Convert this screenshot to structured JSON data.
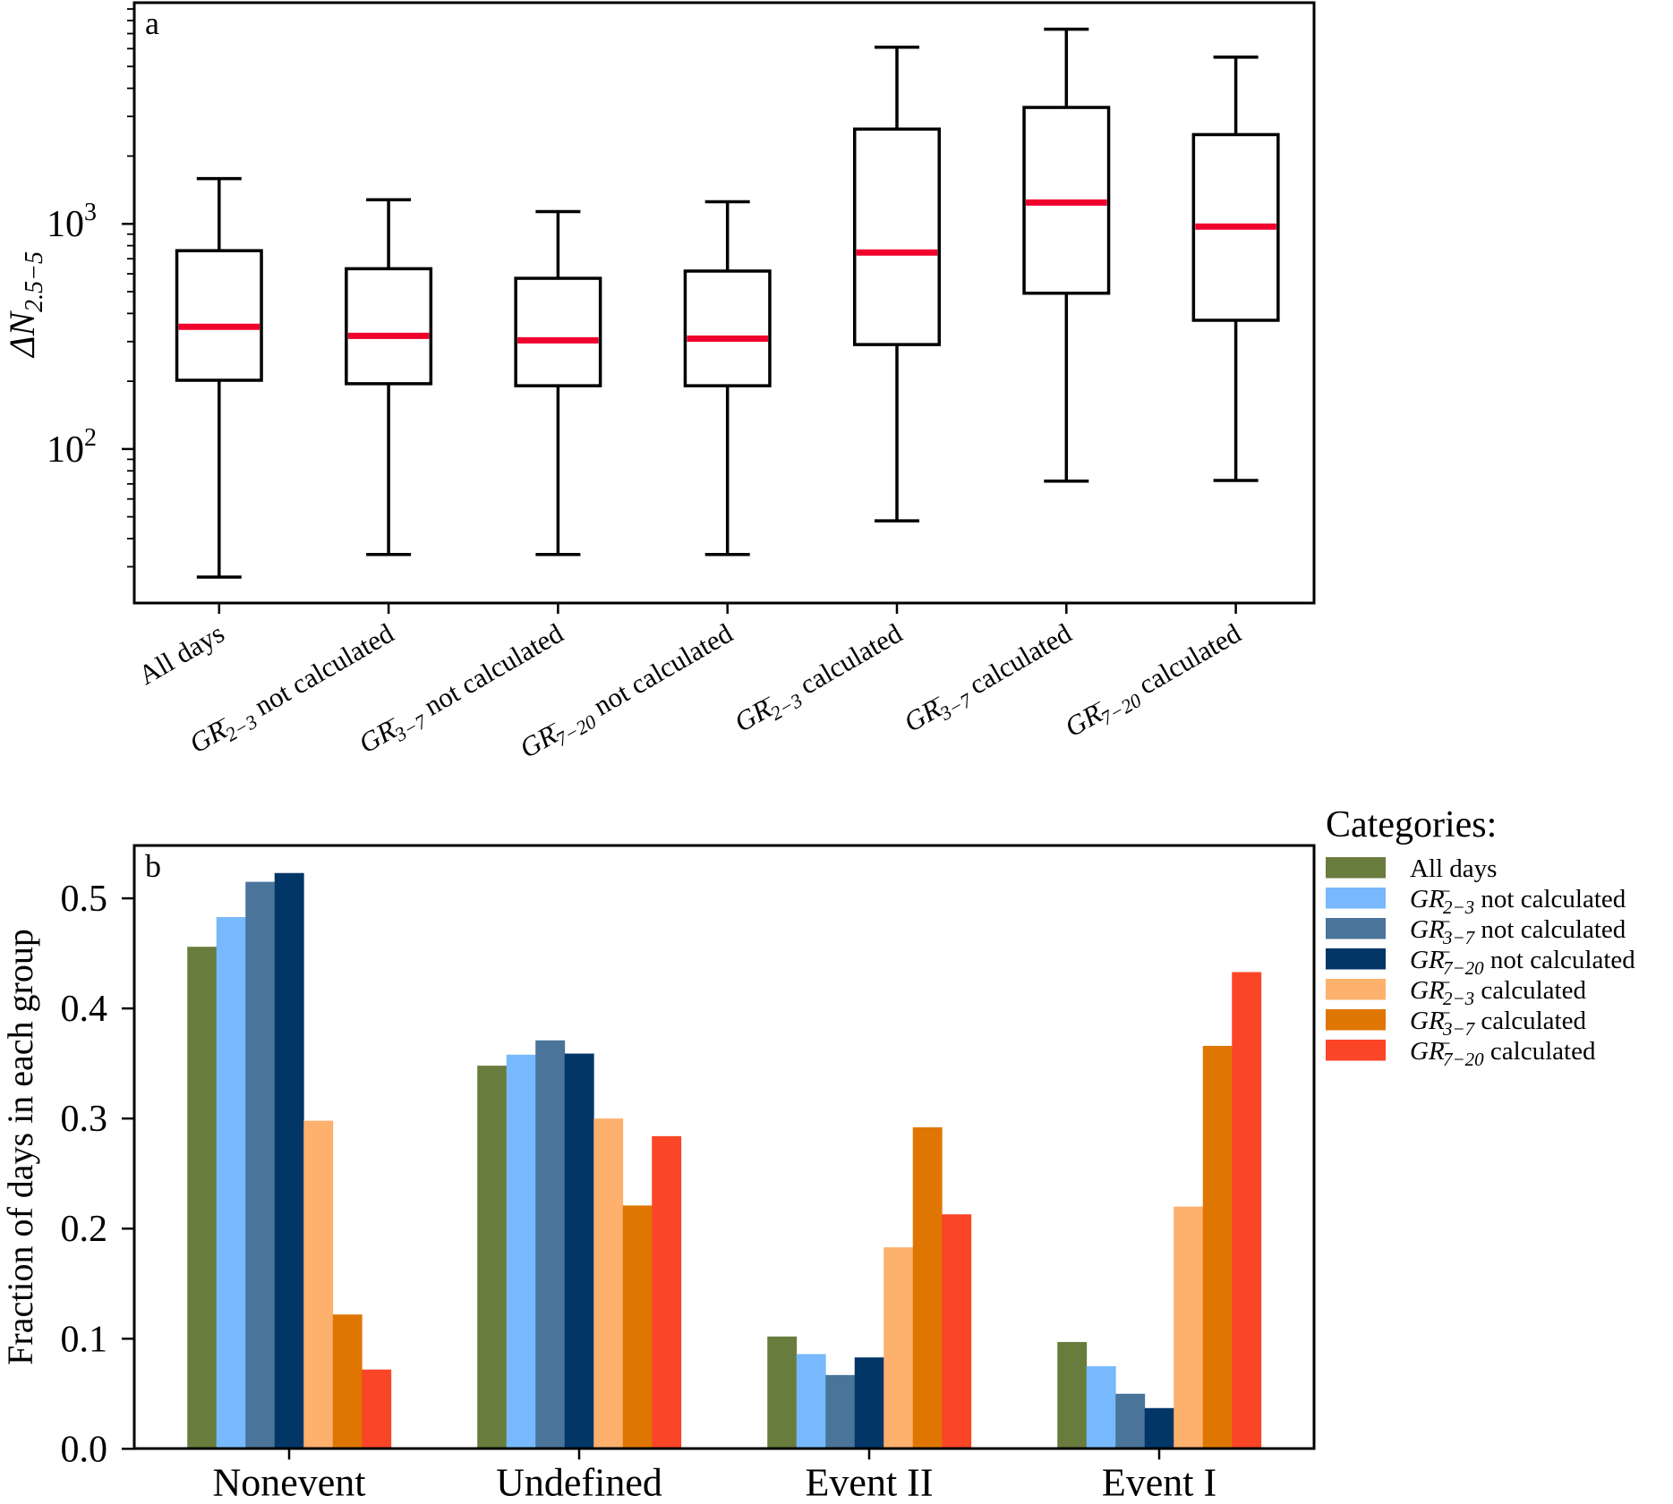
{
  "figure": {
    "panel_a_letter": "a",
    "panel_b_letter": "b"
  },
  "chart_data": [
    {
      "id": "panel-a",
      "type": "box",
      "title": "",
      "ylabel": {
        "main": "ΔN",
        "sub": "2.5−5"
      },
      "xlabel": "",
      "yscale": "log",
      "ylim": [
        20.7,
        9600
      ],
      "yticks": [
        {
          "value": 100,
          "base": "10",
          "exp": "2"
        },
        {
          "value": 1000,
          "base": "10",
          "exp": "3"
        }
      ],
      "grid": false,
      "median_color": "#f0002d",
      "categories": [
        {
          "label_main": "All days",
          "gr": "",
          "sub": "",
          "suffix": ""
        },
        {
          "label_main": "",
          "gr": "GR",
          "sup": "−",
          "sub": "2−3",
          "suffix": " not calculated"
        },
        {
          "label_main": "",
          "gr": "GR",
          "sup": "−",
          "sub": "3−7",
          "suffix": " not calculated"
        },
        {
          "label_main": "",
          "gr": "GR",
          "sup": "−",
          "sub": "7−20",
          "suffix": " not calculated"
        },
        {
          "label_main": "",
          "gr": "GR",
          "sup": "−",
          "sub": "2−3",
          "suffix": " calculated"
        },
        {
          "label_main": "",
          "gr": "GR",
          "sup": "−",
          "sub": "3−7",
          "suffix": " calculated"
        },
        {
          "label_main": "",
          "gr": "GR",
          "sup": "−",
          "sub": "7−20",
          "suffix": " calculated"
        }
      ],
      "boxes": [
        {
          "whisker_low": 27,
          "q1": 202,
          "median": 349,
          "q3": 760,
          "whisker_high": 1588
        },
        {
          "whisker_low": 34,
          "q1": 195,
          "median": 318,
          "q3": 632,
          "whisker_high": 1279
        },
        {
          "whisker_low": 34,
          "q1": 191,
          "median": 304,
          "q3": 573,
          "whisker_high": 1134
        },
        {
          "whisker_low": 34,
          "q1": 191,
          "median": 309,
          "q3": 617,
          "whisker_high": 1253
        },
        {
          "whisker_low": 48,
          "q1": 291,
          "median": 746,
          "q3": 2636,
          "whisker_high": 6087
        },
        {
          "whisker_low": 72,
          "q1": 492,
          "median": 1243,
          "q3": 3289,
          "whisker_high": 7317
        },
        {
          "whisker_low": 72.5,
          "q1": 373,
          "median": 973,
          "q3": 2491,
          "whisker_high": 5502
        }
      ]
    },
    {
      "id": "panel-b",
      "type": "bar",
      "title": "",
      "ylabel": "Fraction of days in each group",
      "xlabel": "",
      "ylim": [
        0,
        0.548
      ],
      "yticks": [
        "0.0",
        "0.1",
        "0.2",
        "0.3",
        "0.4",
        "0.5"
      ],
      "grid": false,
      "categories": [
        "Nonevent",
        "Undefined",
        "Event II",
        "Event I"
      ],
      "legend": {
        "title": "Categories:",
        "placement": "outside-right-top"
      },
      "series": [
        {
          "name": "All days",
          "gr": "",
          "sub": "",
          "suffix": "",
          "color": "#687c3d",
          "values": [
            0.456,
            0.348,
            0.102,
            0.097
          ]
        },
        {
          "name": "GR2−3 not calculated",
          "gr": "GR",
          "sup": "−",
          "sub": "2−3",
          "suffix": " not calculated",
          "color": "#77b9fc",
          "values": [
            0.483,
            0.358,
            0.086,
            0.075
          ]
        },
        {
          "name": "GR3−7 not calculated",
          "gr": "GR",
          "sup": "−",
          "sub": "3−7",
          "suffix": " not calculated",
          "color": "#4a7499",
          "values": [
            0.515,
            0.371,
            0.067,
            0.05
          ]
        },
        {
          "name": "GR7−20 not calculated",
          "gr": "GR",
          "sup": "−",
          "sub": "7−20",
          "suffix": " not calculated",
          "color": "#023667",
          "values": [
            0.523,
            0.359,
            0.083,
            0.037
          ]
        },
        {
          "name": "GR2−3 calculated",
          "gr": "GR",
          "sup": "−",
          "sub": "2−3",
          "suffix": " calculated",
          "color": "#feb06d",
          "values": [
            0.298,
            0.3,
            0.183,
            0.22
          ]
        },
        {
          "name": "GR3−7 calculated",
          "gr": "GR",
          "sup": "−",
          "sub": "3−7",
          "suffix": " calculated",
          "color": "#e07602",
          "values": [
            0.122,
            0.221,
            0.292,
            0.366
          ]
        },
        {
          "name": "GR7−20 calculated",
          "gr": "GR",
          "sup": "−",
          "sub": "7−20",
          "suffix": " calculated",
          "color": "#fb4527",
          "values": [
            0.072,
            0.284,
            0.213,
            0.433
          ]
        }
      ]
    }
  ]
}
